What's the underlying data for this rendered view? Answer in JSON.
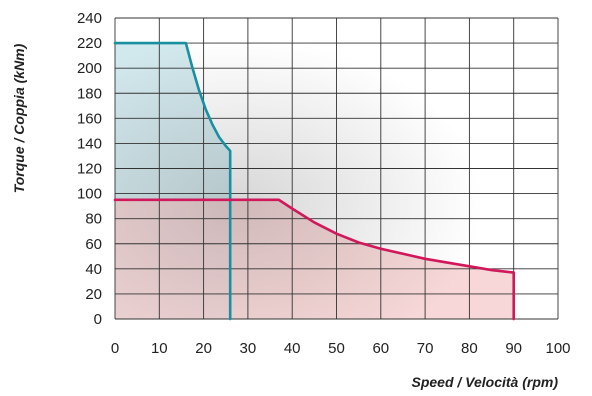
{
  "chart_data": {
    "type": "area",
    "xlabel": "Speed / Velocità (rpm)",
    "ylabel": "Torque / Coppia (kNm)",
    "xlim": [
      0,
      100
    ],
    "ylim": [
      0,
      240
    ],
    "x_ticks": [
      0,
      10,
      20,
      30,
      40,
      50,
      60,
      70,
      80,
      90,
      100
    ],
    "y_ticks": [
      0,
      20,
      40,
      60,
      80,
      100,
      120,
      140,
      160,
      180,
      200,
      220,
      240
    ],
    "x_tick_labels": [
      "0",
      "10",
      "20",
      "30",
      "40",
      "50",
      "60",
      "70",
      "80",
      "90",
      "100"
    ],
    "y_tick_labels": [
      "0",
      "20",
      "40",
      "60",
      "80",
      "100",
      "120",
      "140",
      "160",
      "180",
      "200",
      "220",
      "240"
    ],
    "grid": true,
    "legend": "none",
    "series": [
      {
        "color": "#1a8fa0",
        "fill": "#c9e4ea",
        "points": [
          {
            "x": 0,
            "y": 220
          },
          {
            "x": 16,
            "y": 220
          },
          {
            "x": 17.5,
            "y": 200
          },
          {
            "x": 19,
            "y": 182
          },
          {
            "x": 20.5,
            "y": 167
          },
          {
            "x": 22,
            "y": 155
          },
          {
            "x": 23.5,
            "y": 145
          },
          {
            "x": 25,
            "y": 138
          },
          {
            "x": 26,
            "y": 134
          },
          {
            "x": 26,
            "y": 0
          }
        ]
      },
      {
        "color": "#d0185a",
        "fill": "#f6d0d0",
        "points": [
          {
            "x": 0,
            "y": 95
          },
          {
            "x": 37,
            "y": 95
          },
          {
            "x": 40,
            "y": 88
          },
          {
            "x": 45,
            "y": 77
          },
          {
            "x": 50,
            "y": 68
          },
          {
            "x": 55,
            "y": 61
          },
          {
            "x": 60,
            "y": 56
          },
          {
            "x": 65,
            "y": 52
          },
          {
            "x": 70,
            "y": 48
          },
          {
            "x": 75,
            "y": 45
          },
          {
            "x": 80,
            "y": 42
          },
          {
            "x": 85,
            "y": 39
          },
          {
            "x": 90,
            "y": 37
          },
          {
            "x": 90,
            "y": 0
          }
        ]
      }
    ]
  }
}
